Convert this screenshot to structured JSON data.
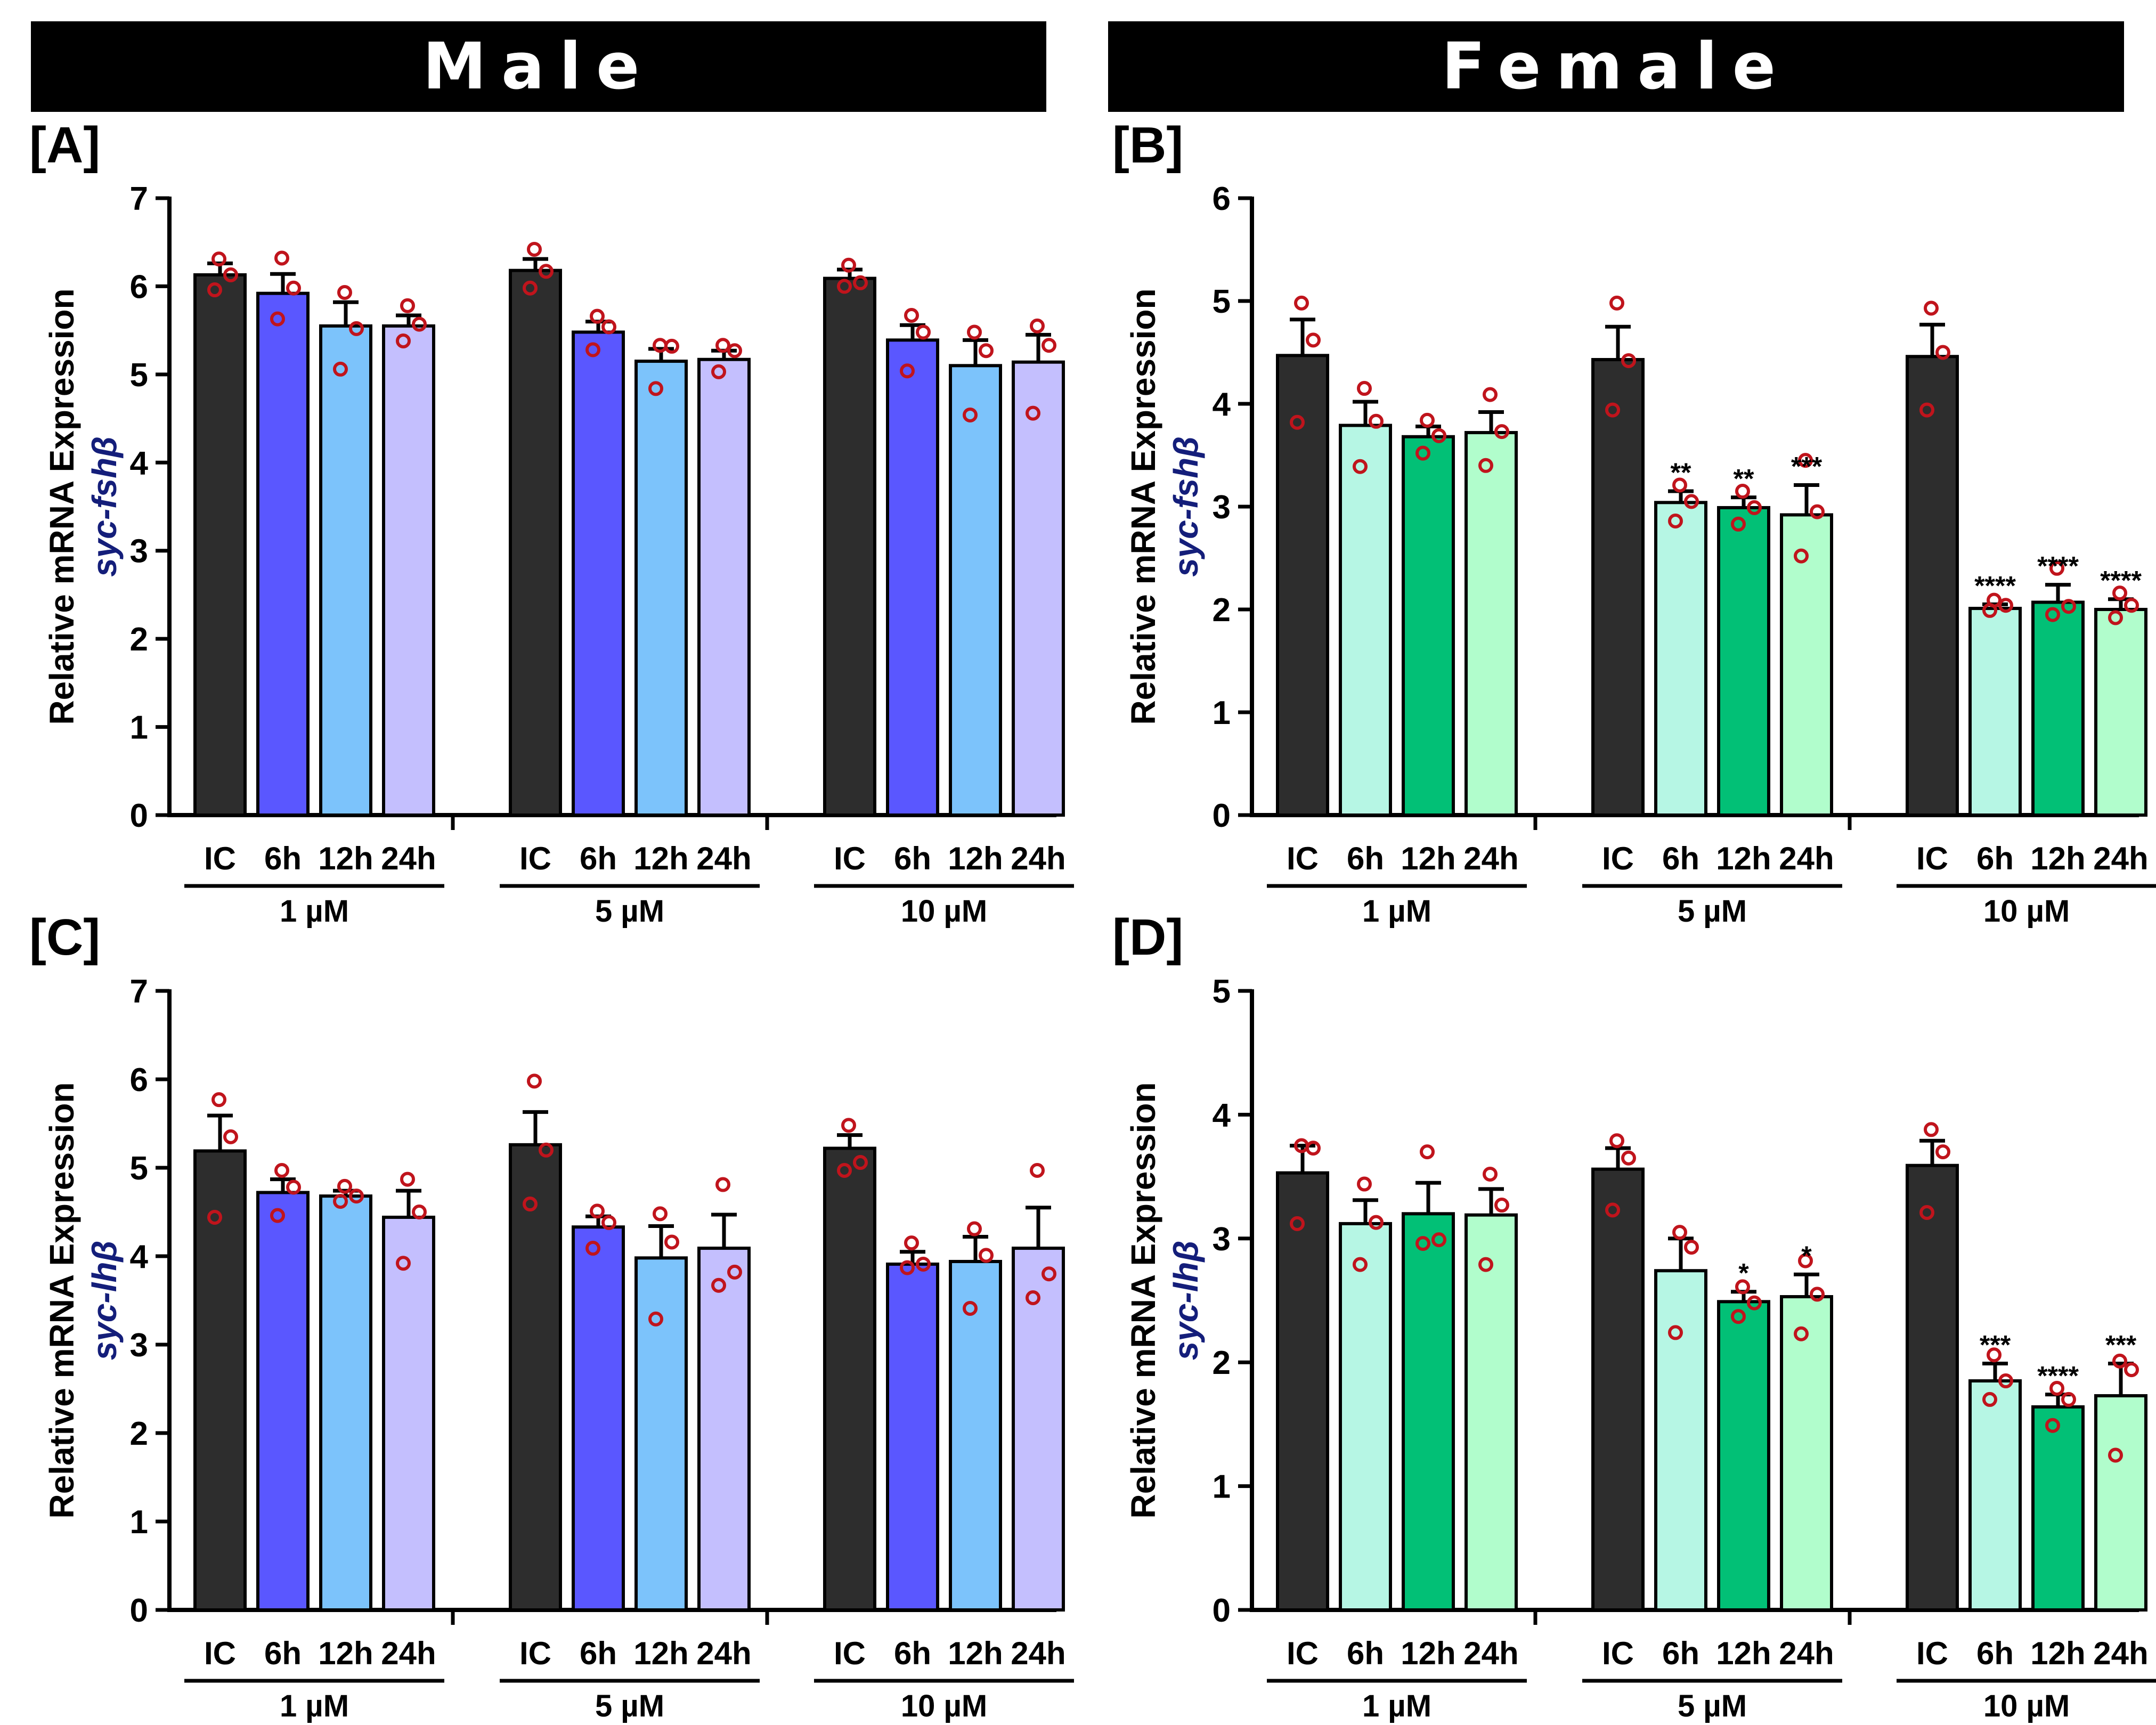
{
  "banners": {
    "left": "Male",
    "right": "Female"
  },
  "colors": {
    "ic": "#2d2d2d",
    "male": [
      "#5a57ff",
      "#7cc3fb",
      "#c4bffe"
    ],
    "female": [
      "#b6f6e4",
      "#02c076",
      "#b1fdcc"
    ],
    "dot": "#c0141c",
    "ylabel_gene": "#141e7a"
  },
  "chart_data": [
    {
      "type": "bar",
      "panel": "[A]",
      "sex": "Male",
      "ylabel_prefix": "syc-fsh",
      "ylabel_greek": "β",
      "ylabel_main": "Relative mRNA Expression",
      "ylim": [
        0,
        7
      ],
      "yticks": [
        0,
        1,
        2,
        3,
        4,
        5,
        6,
        7
      ],
      "groups": [
        {
          "label": "1 µM",
          "bars": [
            {
              "label": "IC",
              "mean": 6.13,
              "sem": 0.13,
              "points": [
                6.31,
                6.13,
                5.96
              ],
              "sig": ""
            },
            {
              "label": "6h",
              "mean": 5.92,
              "sem": 0.22,
              "points": [
                6.32,
                5.98,
                5.63
              ],
              "sig": ""
            },
            {
              "label": "12h",
              "mean": 5.55,
              "sem": 0.27,
              "points": [
                5.93,
                5.52,
                5.06
              ],
              "sig": ""
            },
            {
              "label": "24h",
              "mean": 5.55,
              "sem": 0.12,
              "points": [
                5.78,
                5.57,
                5.38
              ],
              "sig": ""
            }
          ]
        },
        {
          "label": "5 µM",
          "bars": [
            {
              "label": "IC",
              "mean": 6.18,
              "sem": 0.13,
              "points": [
                6.42,
                6.17,
                5.98
              ],
              "sig": ""
            },
            {
              "label": "6h",
              "mean": 5.48,
              "sem": 0.12,
              "points": [
                5.66,
                5.54,
                5.28
              ],
              "sig": ""
            },
            {
              "label": "12h",
              "mean": 5.15,
              "sem": 0.14,
              "points": [
                5.33,
                5.32,
                4.84
              ],
              "sig": ""
            },
            {
              "label": "24h",
              "mean": 5.17,
              "sem": 0.1,
              "points": [
                5.33,
                5.27,
                5.03
              ],
              "sig": ""
            }
          ]
        },
        {
          "label": "10 µM",
          "bars": [
            {
              "label": "IC",
              "mean": 6.09,
              "sem": 0.1,
              "points": [
                6.24,
                6.04,
                6.0
              ],
              "sig": ""
            },
            {
              "label": "6h",
              "mean": 5.39,
              "sem": 0.17,
              "points": [
                5.67,
                5.48,
                5.04
              ],
              "sig": ""
            },
            {
              "label": "12h",
              "mean": 5.1,
              "sem": 0.29,
              "points": [
                5.48,
                5.27,
                4.54
              ],
              "sig": ""
            },
            {
              "label": "24h",
              "mean": 5.14,
              "sem": 0.31,
              "points": [
                5.55,
                5.33,
                4.56
              ],
              "sig": ""
            }
          ]
        }
      ]
    },
    {
      "type": "bar",
      "panel": "[B]",
      "sex": "Female",
      "ylabel_prefix": "syc-fsh",
      "ylabel_greek": "β",
      "ylabel_main": "Relative mRNA Expression",
      "ylim": [
        0,
        6
      ],
      "yticks": [
        0,
        1,
        2,
        3,
        4,
        5,
        6
      ],
      "groups": [
        {
          "label": "1 µM",
          "bars": [
            {
              "label": "IC",
              "mean": 4.47,
              "sem": 0.35,
              "points": [
                4.98,
                4.62,
                3.82
              ],
              "sig": ""
            },
            {
              "label": "6h",
              "mean": 3.79,
              "sem": 0.23,
              "points": [
                4.15,
                3.83,
                3.39
              ],
              "sig": ""
            },
            {
              "label": "12h",
              "mean": 3.68,
              "sem": 0.1,
              "points": [
                3.84,
                3.69,
                3.52
              ],
              "sig": ""
            },
            {
              "label": "24h",
              "mean": 3.72,
              "sem": 0.2,
              "points": [
                4.09,
                3.73,
                3.4
              ],
              "sig": ""
            }
          ]
        },
        {
          "label": "5 µM",
          "bars": [
            {
              "label": "IC",
              "mean": 4.43,
              "sem": 0.32,
              "points": [
                4.98,
                4.42,
                3.94
              ],
              "sig": ""
            },
            {
              "label": "6h",
              "mean": 3.04,
              "sem": 0.11,
              "points": [
                3.21,
                3.05,
                2.86
              ],
              "sig": "**"
            },
            {
              "label": "12h",
              "mean": 2.99,
              "sem": 0.1,
              "points": [
                3.15,
                2.99,
                2.83
              ],
              "sig": "**"
            },
            {
              "label": "24h",
              "mean": 2.92,
              "sem": 0.29,
              "points": [
                3.45,
                2.95,
                2.52
              ],
              "sig": "***"
            }
          ]
        },
        {
          "label": "10 µM",
          "bars": [
            {
              "label": "IC",
              "mean": 4.46,
              "sem": 0.31,
              "points": [
                4.93,
                4.5,
                3.94
              ],
              "sig": ""
            },
            {
              "label": "6h",
              "mean": 2.01,
              "sem": 0.04,
              "points": [
                2.09,
                2.04,
                1.99
              ],
              "sig": "****"
            },
            {
              "label": "12h",
              "mean": 2.07,
              "sem": 0.17,
              "points": [
                2.4,
                2.03,
                1.95
              ],
              "sig": "****"
            },
            {
              "label": "24h",
              "mean": 2.0,
              "sem": 0.1,
              "points": [
                2.16,
                2.04,
                1.92
              ],
              "sig": "****"
            }
          ]
        }
      ]
    },
    {
      "type": "bar",
      "panel": "[C]",
      "sex": "Male",
      "ylabel_prefix": "syc-lh",
      "ylabel_greek": "β",
      "ylabel_main": "Relative mRNA Expression",
      "ylim": [
        0,
        7
      ],
      "yticks": [
        0,
        1,
        2,
        3,
        4,
        5,
        6,
        7
      ],
      "groups": [
        {
          "label": "1 µM",
          "bars": [
            {
              "label": "IC",
              "mean": 5.19,
              "sem": 0.4,
              "points": [
                5.77,
                5.35,
                4.44
              ],
              "sig": ""
            },
            {
              "label": "6h",
              "mean": 4.72,
              "sem": 0.15,
              "points": [
                4.97,
                4.78,
                4.46
              ],
              "sig": ""
            },
            {
              "label": "12h",
              "mean": 4.68,
              "sem": 0.06,
              "points": [
                4.79,
                4.68,
                4.62
              ],
              "sig": ""
            },
            {
              "label": "24h",
              "mean": 4.44,
              "sem": 0.3,
              "points": [
                4.87,
                4.5,
                3.92
              ],
              "sig": ""
            }
          ]
        },
        {
          "label": "5 µM",
          "bars": [
            {
              "label": "IC",
              "mean": 5.26,
              "sem": 0.37,
              "points": [
                5.98,
                5.2,
                4.59
              ],
              "sig": ""
            },
            {
              "label": "6h",
              "mean": 4.33,
              "sem": 0.12,
              "points": [
                4.51,
                4.38,
                4.09
              ],
              "sig": ""
            },
            {
              "label": "12h",
              "mean": 3.98,
              "sem": 0.36,
              "points": [
                4.48,
                4.16,
                3.29
              ],
              "sig": ""
            },
            {
              "label": "24h",
              "mean": 4.09,
              "sem": 0.38,
              "points": [
                4.81,
                3.82,
                3.67
              ],
              "sig": ""
            }
          ]
        },
        {
          "label": "10 µM",
          "bars": [
            {
              "label": "IC",
              "mean": 5.22,
              "sem": 0.15,
              "points": [
                5.48,
                5.06,
                4.97
              ],
              "sig": ""
            },
            {
              "label": "6h",
              "mean": 3.91,
              "sem": 0.14,
              "points": [
                4.15,
                3.91,
                3.87
              ],
              "sig": ""
            },
            {
              "label": "12h",
              "mean": 3.94,
              "sem": 0.28,
              "points": [
                4.31,
                4.01,
                3.41
              ],
              "sig": ""
            },
            {
              "label": "24h",
              "mean": 4.09,
              "sem": 0.46,
              "points": [
                4.97,
                3.8,
                3.53
              ],
              "sig": ""
            }
          ]
        }
      ]
    },
    {
      "type": "bar",
      "panel": "[D]",
      "sex": "Female",
      "ylabel_prefix": "syc-lh",
      "ylabel_greek": "β",
      "ylabel_main": "Relative mRNA Expression",
      "ylim": [
        0,
        5
      ],
      "yticks": [
        0,
        1,
        2,
        3,
        4,
        5
      ],
      "groups": [
        {
          "label": "1 µM",
          "bars": [
            {
              "label": "IC",
              "mean": 3.53,
              "sem": 0.22,
              "points": [
                3.75,
                3.73,
                3.12
              ],
              "sig": ""
            },
            {
              "label": "6h",
              "mean": 3.12,
              "sem": 0.19,
              "points": [
                3.44,
                3.13,
                2.79
              ],
              "sig": ""
            },
            {
              "label": "12h",
              "mean": 3.2,
              "sem": 0.25,
              "points": [
                3.7,
                2.99,
                2.96
              ],
              "sig": ""
            },
            {
              "label": "24h",
              "mean": 3.19,
              "sem": 0.21,
              "points": [
                3.52,
                3.27,
                2.79
              ],
              "sig": ""
            }
          ]
        },
        {
          "label": "5 µM",
          "bars": [
            {
              "label": "IC",
              "mean": 3.56,
              "sem": 0.17,
              "points": [
                3.79,
                3.65,
                3.23
              ],
              "sig": ""
            },
            {
              "label": "6h",
              "mean": 2.74,
              "sem": 0.26,
              "points": [
                3.05,
                2.93,
                2.24
              ],
              "sig": ""
            },
            {
              "label": "12h",
              "mean": 2.49,
              "sem": 0.08,
              "points": [
                2.61,
                2.48,
                2.37
              ],
              "sig": "*"
            },
            {
              "label": "24h",
              "mean": 2.53,
              "sem": 0.18,
              "points": [
                2.82,
                2.55,
                2.23
              ],
              "sig": "*"
            }
          ]
        },
        {
          "label": "10 µM",
          "bars": [
            {
              "label": "IC",
              "mean": 3.59,
              "sem": 0.2,
              "points": [
                3.88,
                3.7,
                3.21
              ],
              "sig": ""
            },
            {
              "label": "6h",
              "mean": 1.85,
              "sem": 0.14,
              "points": [
                2.06,
                1.85,
                1.7
              ],
              "sig": "***"
            },
            {
              "label": "12h",
              "mean": 1.64,
              "sem": 0.1,
              "points": [
                1.79,
                1.7,
                1.49
              ],
              "sig": "****"
            },
            {
              "label": "24h",
              "mean": 1.73,
              "sem": 0.26,
              "points": [
                2.01,
                1.94,
                1.25
              ],
              "sig": "***"
            }
          ]
        }
      ]
    }
  ]
}
